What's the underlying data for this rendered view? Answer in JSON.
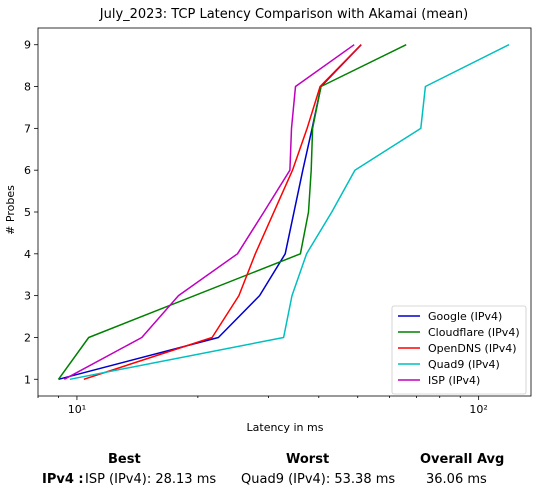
{
  "chart_data": {
    "type": "line",
    "title": "July_2023: TCP Latency Comparison with Akamai (mean)",
    "xlabel": "Latency in ms",
    "ylabel": "# Probes",
    "xscale": "log",
    "xlim": [
      8.0,
      135.0
    ],
    "ylim": [
      0.6,
      9.4
    ],
    "xticks": [
      10,
      100
    ],
    "xtick_labels": [
      "10¹",
      "10²"
    ],
    "yticks": [
      1,
      2,
      3,
      4,
      5,
      6,
      7,
      8,
      9
    ],
    "grid": false,
    "legend_position": "lower-right",
    "series": [
      {
        "name": "Google (IPv4)",
        "color": "#0000cc",
        "points": [
          [
            9.0,
            1
          ],
          [
            22.5,
            2
          ],
          [
            28.5,
            3
          ],
          [
            33.0,
            4
          ],
          [
            36.5,
            6
          ],
          [
            38.5,
            7
          ],
          [
            40.5,
            8
          ],
          [
            51.0,
            9
          ]
        ]
      },
      {
        "name": "Cloudflare (IPv4)",
        "color": "#008000",
        "points": [
          [
            9.0,
            1
          ],
          [
            10.7,
            2
          ],
          [
            36.0,
            4
          ],
          [
            37.7,
            5
          ],
          [
            38.3,
            6
          ],
          [
            38.6,
            7
          ],
          [
            40.5,
            8
          ],
          [
            66.0,
            9
          ]
        ]
      },
      {
        "name": "OpenDNS (IPv4)",
        "color": "#ff0000",
        "points": [
          [
            10.4,
            1
          ],
          [
            21.7,
            2
          ],
          [
            25.3,
            3
          ],
          [
            27.8,
            4
          ],
          [
            34.4,
            6
          ],
          [
            37.4,
            7
          ],
          [
            40.3,
            8
          ],
          [
            51.0,
            9
          ]
        ]
      },
      {
        "name": "Quad9 (IPv4)",
        "color": "#00bfbf",
        "points": [
          [
            9.6,
            1
          ],
          [
            32.7,
            2
          ],
          [
            34.3,
            3
          ],
          [
            37.3,
            4
          ],
          [
            43.1,
            5
          ],
          [
            49.2,
            6
          ],
          [
            71.8,
            7
          ],
          [
            73.7,
            8
          ],
          [
            119.0,
            9
          ]
        ]
      },
      {
        "name": "ISP (IPv4)",
        "color": "#bf00bf",
        "points": [
          [
            9.3,
            1
          ],
          [
            14.5,
            2
          ],
          [
            17.9,
            3
          ],
          [
            25.1,
            4
          ],
          [
            29.2,
            5
          ],
          [
            33.9,
            6
          ],
          [
            34.2,
            7
          ],
          [
            35.0,
            8
          ],
          [
            49.0,
            9
          ]
        ]
      }
    ]
  },
  "summary": {
    "best_header": "Best",
    "worst_header": "Worst",
    "avg_header": "Overall Avg",
    "row_label": "IPv4 :",
    "best_value": "ISP (IPv4): 28.13 ms",
    "worst_value": "Quad9 (IPv4): 53.38 ms",
    "avg_value": "36.06 ms"
  }
}
